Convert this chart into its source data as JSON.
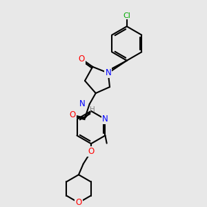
{
  "background_color": "#e8e8e8",
  "bond_color": "#000000",
  "bond_width": 1.5,
  "atom_colors": {
    "C": "#000000",
    "N": "#0000ff",
    "O": "#ff0000",
    "Cl": "#00aa00",
    "H": "#808080"
  },
  "font_size": 7.5,
  "figsize": [
    3.0,
    3.0
  ],
  "dpi": 100
}
